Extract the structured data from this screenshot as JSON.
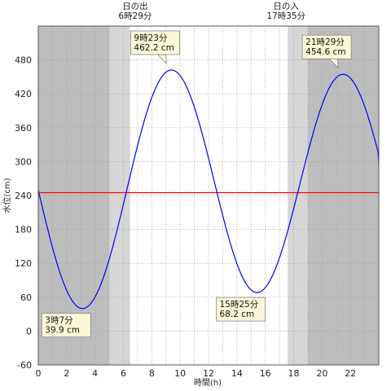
{
  "chart_data": {
    "type": "line",
    "xlabel": "時間(h)",
    "ylabel": "水位(cm)",
    "xlim": [
      0,
      24
    ],
    "ylim": [
      -60,
      540
    ],
    "xticks": [
      "0",
      "2",
      "4",
      "6",
      "8",
      "10",
      "12",
      "14",
      "16",
      "18",
      "20",
      "22"
    ],
    "yticks": [
      "-60",
      "0",
      "60",
      "120",
      "180",
      "240",
      "300",
      "360",
      "420",
      "480"
    ],
    "grid": true,
    "colors": {
      "series": "#0000ff",
      "reference": "#ff0000",
      "night": "#bdbdbd",
      "twilight": "#d6d6d6",
      "day": "#ffffff",
      "callout": "#fbf8d8"
    },
    "sunrise": {
      "label": "日の出",
      "time": "6時29分",
      "hour": 6.48
    },
    "sunset": {
      "label": "日の入",
      "time": "17時35分",
      "hour": 17.58
    },
    "twilight_hours": {
      "dawn": 5.0,
      "dusk": 19.0
    },
    "reference_line": 245,
    "extremes": [
      {
        "time": "3時7分",
        "level": "39.9 cm",
        "hour": 3.117,
        "value": 39.9
      },
      {
        "time": "9時23分",
        "level": "462.2 cm",
        "hour": 9.383,
        "value": 462.2
      },
      {
        "time": "15時25分",
        "level": "68.2 cm",
        "hour": 15.417,
        "value": 68.2
      },
      {
        "time": "21時29分",
        "level": "454.6 cm",
        "hour": 21.483,
        "value": 454.6
      }
    ],
    "series": [
      {
        "x": [
          0,
          3.117,
          9.383,
          15.417,
          21.483,
          24
        ],
        "values": [
          245,
          39.9,
          462.2,
          68.2,
          454.6,
          298
        ]
      }
    ]
  }
}
